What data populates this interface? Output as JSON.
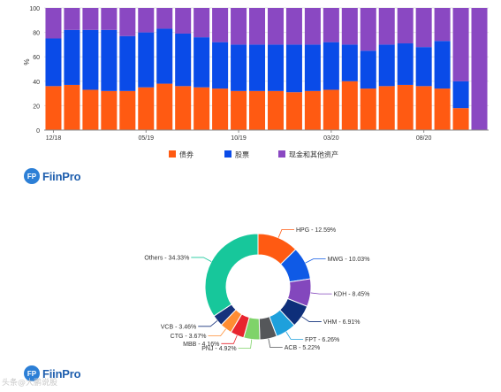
{
  "chart_data": [
    {
      "type": "bar",
      "stacked": true,
      "ylabel": "%",
      "ylim": [
        0,
        100
      ],
      "yticks": [
        "0",
        "20",
        "40",
        "60",
        "80",
        "100"
      ],
      "grid": true,
      "xtick_labels": [
        {
          "label": "12/18",
          "index": 0
        },
        {
          "label": "05/19",
          "index": 5
        },
        {
          "label": "10/19",
          "index": 10
        },
        {
          "label": "03/20",
          "index": 15
        },
        {
          "label": "08/20",
          "index": 20
        }
      ],
      "legend_position": "bottom",
      "series": [
        {
          "name": "债券",
          "color": "#ff5a12",
          "values": [
            36,
            37,
            33,
            32,
            32,
            35,
            38,
            36,
            35,
            34,
            32,
            32,
            32,
            31,
            32,
            33,
            40,
            34,
            36,
            37,
            36,
            34,
            18,
            0
          ]
        },
        {
          "name": "股票",
          "color": "#0a4be8",
          "values": [
            39,
            45,
            49,
            50,
            45,
            45,
            45,
            43,
            41,
            38,
            38,
            38,
            38,
            39,
            38,
            39,
            30,
            31,
            34,
            34,
            32,
            39,
            22,
            0
          ]
        },
        {
          "name": "现金和其他资产",
          "color": "#8a48c2",
          "values": [
            25,
            18,
            18,
            18,
            23,
            20,
            17,
            21,
            24,
            28,
            30,
            30,
            30,
            30,
            30,
            28,
            30,
            35,
            30,
            29,
            32,
            27,
            60,
            100
          ]
        }
      ]
    },
    {
      "type": "pie",
      "donut": true,
      "slices": [
        {
          "label": "HPG - 12.59%",
          "value": 12.59,
          "color": "#ff5a12"
        },
        {
          "label": "MWG - 10.03%",
          "value": 10.03,
          "color": "#0f5ae6"
        },
        {
          "label": "KDH - 8.45%",
          "value": 8.45,
          "color": "#8347bd"
        },
        {
          "label": "VHM - 6.91%",
          "value": 6.91,
          "color": "#0e2f7a"
        },
        {
          "label": "FPT - 6.26%",
          "value": 6.26,
          "color": "#1ea0dc"
        },
        {
          "label": "ACB - 5.22%",
          "value": 5.22,
          "color": "#55575a"
        },
        {
          "label": "PNJ - 4.92%",
          "value": 4.92,
          "color": "#7fd36a"
        },
        {
          "label": "MBB - 4.16%",
          "value": 4.16,
          "color": "#e8242e"
        },
        {
          "label": "CTG - 3.67%",
          "value": 3.67,
          "color": "#ff8d33"
        },
        {
          "label": "VCB - 3.46%",
          "value": 3.46,
          "color": "#16327c"
        },
        {
          "label": "Others - 34.33%",
          "value": 34.33,
          "color": "#17c79b"
        }
      ]
    }
  ],
  "logos": {
    "top": "FiinPro",
    "bottom": "FiinPro",
    "mark": "FP"
  },
  "watermark": "头条@大鹏说股"
}
